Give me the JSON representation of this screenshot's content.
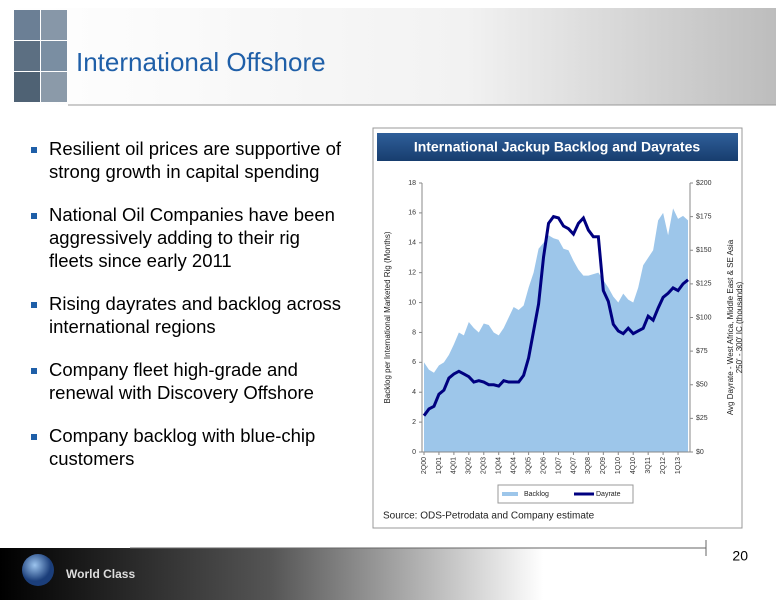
{
  "header": {
    "title": "International Offshore"
  },
  "bullets": [
    [
      "Resilient oil prices are supportive of",
      "strong growth in capital spending"
    ],
    [
      "National Oil Companies have been",
      "aggressively adding to their rig",
      "fleets since early 2011"
    ],
    [
      "Rising dayrates and backlog across",
      "international regions"
    ],
    [
      "Company fleet high-grade and",
      "renewal with Discovery Offshore"
    ],
    [
      "Company backlog with blue-chip",
      "customers"
    ]
  ],
  "chart_data": {
    "type": "combo",
    "title": "International Jackup Backlog and Dayrates",
    "ylabel": "Backlog per International Marketed Rig (Months)",
    "y2label": [
      "Avg Dayrate - West Africa, Middle East & SE Asia",
      "250' - 300' IC (thousands)"
    ],
    "source": "Source: ODS-Petrodata and Company estimate",
    "categories": [
      "2Q00",
      null,
      null,
      "1Q01",
      null,
      null,
      "4Q01",
      null,
      null,
      "3Q02",
      null,
      null,
      "2Q03",
      null,
      null,
      "1Q04",
      null,
      null,
      "4Q04",
      null,
      null,
      "3Q05",
      null,
      null,
      "2Q06",
      null,
      null,
      "1Q07",
      null,
      null,
      "4Q07",
      null,
      null,
      "3Q08",
      null,
      null,
      "2Q09",
      null,
      null,
      "1Q10",
      null,
      null,
      "4Q10",
      null,
      null,
      "3Q11",
      null,
      null,
      "2Q12",
      null,
      null,
      "1Q13",
      null,
      null
    ],
    "series": [
      {
        "name": "Backlog",
        "type": "area",
        "color": "#9dc6ea",
        "values": [
          6.0,
          5.5,
          5.3,
          5.8,
          6.0,
          6.5,
          7.2,
          8.0,
          7.8,
          8.7,
          8.3,
          8.0,
          8.6,
          8.5,
          8.0,
          7.8,
          8.3,
          9.0,
          9.7,
          9.5,
          9.8,
          11.0,
          12.0,
          13.6,
          14.0,
          14.5,
          14.3,
          14.2,
          13.6,
          13.5,
          12.8,
          12.2,
          11.8,
          11.8,
          11.9,
          12.0,
          11.5,
          11.0,
          10.4,
          10.0,
          10.6,
          10.2,
          10.0,
          11.0,
          12.5,
          13.0,
          13.5,
          15.5,
          16.0,
          14.5,
          16.3,
          15.6,
          15.8,
          15.5
        ]
      },
      {
        "name": "Dayrate",
        "type": "line",
        "axis": "y2",
        "color": "#000080",
        "values": [
          27,
          32,
          34,
          43,
          46,
          55,
          58,
          60,
          58,
          56,
          52,
          53,
          52,
          50,
          50,
          49,
          53,
          52,
          52,
          52,
          57,
          70,
          90,
          110,
          145,
          170,
          175,
          174,
          168,
          166,
          162,
          170,
          174,
          165,
          160,
          160,
          120,
          112,
          95,
          90,
          88,
          92,
          88,
          90,
          92,
          101,
          98,
          107,
          115,
          118,
          122,
          120,
          125,
          128
        ]
      }
    ],
    "ylim": [
      0,
      18
    ],
    "yticks": [
      0,
      2,
      4,
      6,
      8,
      10,
      12,
      14,
      16,
      18
    ],
    "y2lim": [
      0,
      200
    ],
    "y2ticks": [
      {
        "value": 0,
        "label": "$0"
      },
      {
        "value": 25,
        "label": "$25"
      },
      {
        "value": 50,
        "label": "$50"
      },
      {
        "value": 75,
        "label": "$75"
      },
      {
        "value": 100,
        "label": "$100"
      },
      {
        "value": 125,
        "label": "$125"
      },
      {
        "value": 150,
        "label": "$150"
      },
      {
        "value": 175,
        "label": "$175"
      },
      {
        "value": 200,
        "label": "$200"
      }
    ]
  },
  "footer": {
    "tagline": "World Class",
    "page": "20"
  }
}
